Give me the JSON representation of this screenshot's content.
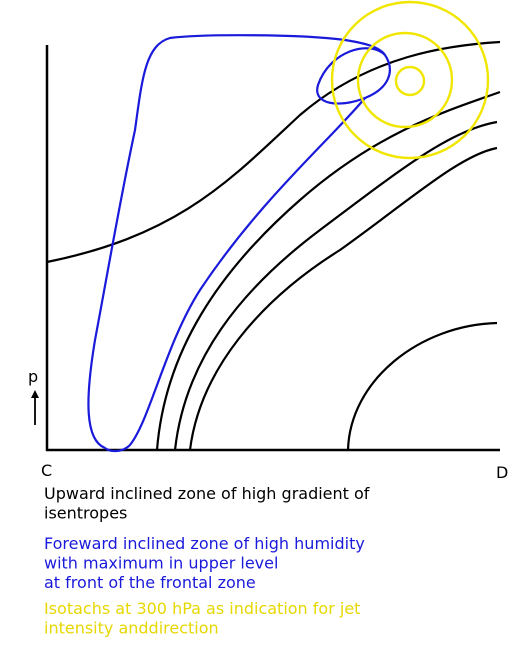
{
  "axis": {
    "y_label": "p",
    "x_start": "C",
    "x_end": "D"
  },
  "captions": [
    {
      "lines": [
        "Upward inclined zone of high gradient of",
        "isentropes"
      ]
    },
    {
      "lines": [
        "Foreward inclined zone of high humidity",
        "with maximum in upper level",
        "at front of the frontal zone"
      ]
    },
    {
      "lines": [
        "Isotachs at 300 hPa as indication for jet",
        "intensity anddirection"
      ]
    }
  ]
}
